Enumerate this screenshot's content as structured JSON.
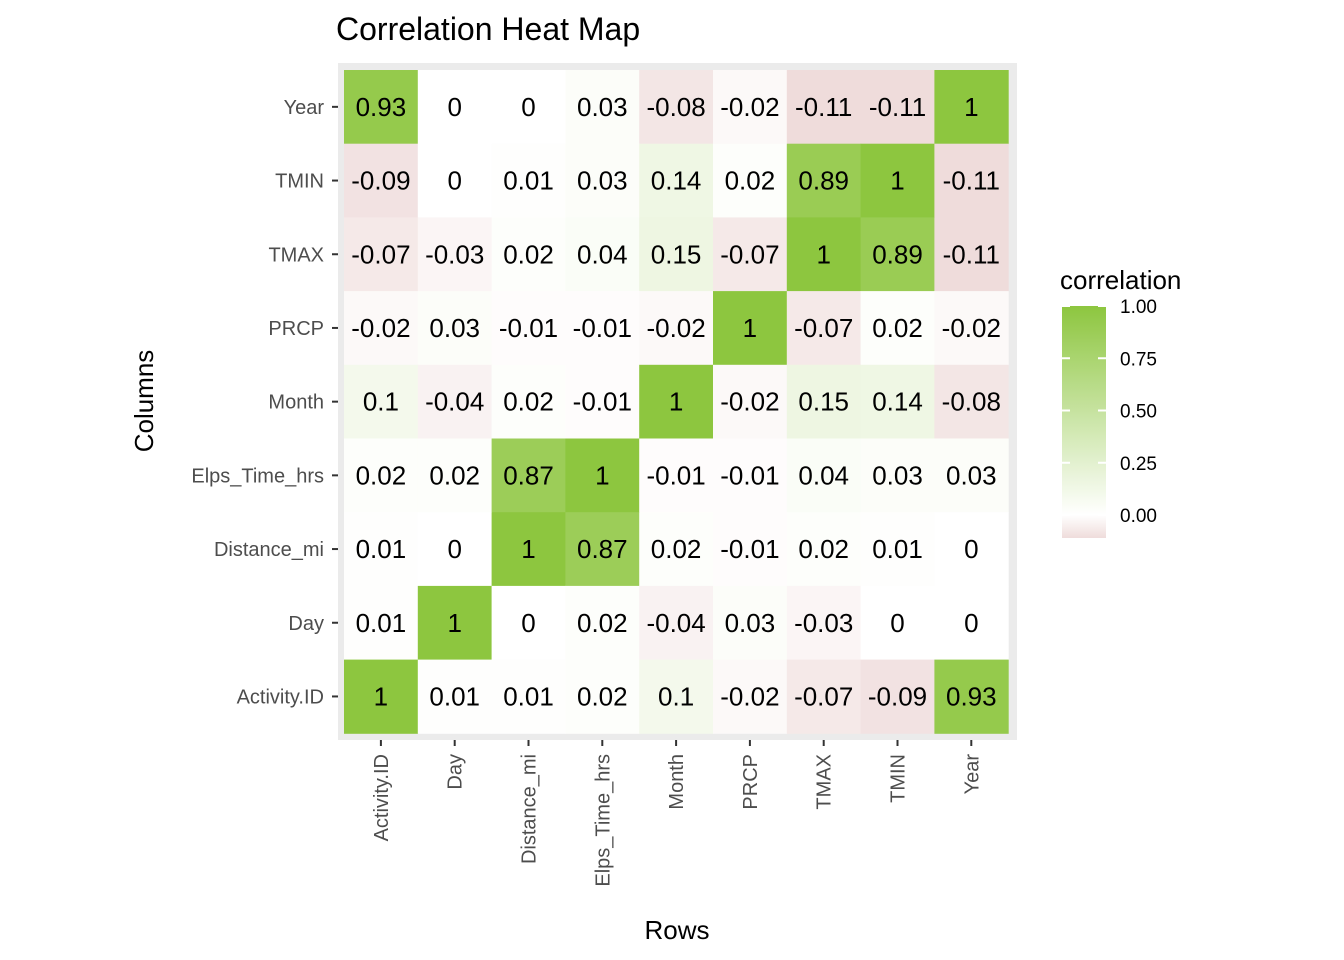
{
  "chart_data": {
    "type": "heatmap",
    "title": "Correlation Heat Map",
    "xlabel": "Rows",
    "ylabel": "Columns",
    "x_categories": [
      "Activity.ID",
      "Day",
      "Distance_mi",
      "Elps_Time_hrs",
      "Month",
      "PRCP",
      "TMAX",
      "TMIN",
      "Year"
    ],
    "y_categories": [
      "Activity.ID",
      "Day",
      "Distance_mi",
      "Elps_Time_hrs",
      "Month",
      "PRCP",
      "TMAX",
      "TMIN",
      "Year"
    ],
    "rows": [
      {
        "y": "Year",
        "values": [
          0.93,
          0,
          0,
          0.03,
          -0.08,
          -0.02,
          -0.11,
          -0.11,
          1
        ]
      },
      {
        "y": "TMIN",
        "values": [
          -0.09,
          0,
          0.01,
          0.03,
          0.14,
          0.02,
          0.89,
          1,
          -0.11
        ]
      },
      {
        "y": "TMAX",
        "values": [
          -0.07,
          -0.03,
          0.02,
          0.04,
          0.15,
          -0.07,
          1,
          0.89,
          -0.11
        ]
      },
      {
        "y": "PRCP",
        "values": [
          -0.02,
          0.03,
          -0.01,
          -0.01,
          -0.02,
          1,
          -0.07,
          0.02,
          -0.02
        ]
      },
      {
        "y": "Month",
        "values": [
          0.1,
          -0.04,
          0.02,
          -0.01,
          1,
          -0.02,
          0.15,
          0.14,
          -0.08
        ]
      },
      {
        "y": "Elps_Time_hrs",
        "values": [
          0.02,
          0.02,
          0.87,
          1,
          -0.01,
          -0.01,
          0.04,
          0.03,
          0.03
        ]
      },
      {
        "y": "Distance_mi",
        "values": [
          0.01,
          0,
          1,
          0.87,
          0.02,
          -0.01,
          0.02,
          0.01,
          0
        ]
      },
      {
        "y": "Day",
        "values": [
          0.01,
          1,
          0,
          0.02,
          -0.04,
          0.03,
          -0.03,
          0,
          0
        ]
      },
      {
        "y": "Activity.ID",
        "values": [
          1,
          0.01,
          0.01,
          0.02,
          0.1,
          -0.02,
          -0.07,
          -0.09,
          0.93
        ]
      }
    ],
    "legend": {
      "title": "correlation",
      "ticks": [
        1.0,
        0.75,
        0.5,
        0.25,
        0.0
      ],
      "tick_labels": [
        "1.00",
        "0.75",
        "0.50",
        "0.25",
        "0.00"
      ],
      "range": [
        -0.11,
        1.0
      ]
    },
    "colors": {
      "high": "#8dc63f",
      "mid": "#ffffff",
      "low": "#efdcdb",
      "panel_bg": "#ebebeb"
    }
  }
}
